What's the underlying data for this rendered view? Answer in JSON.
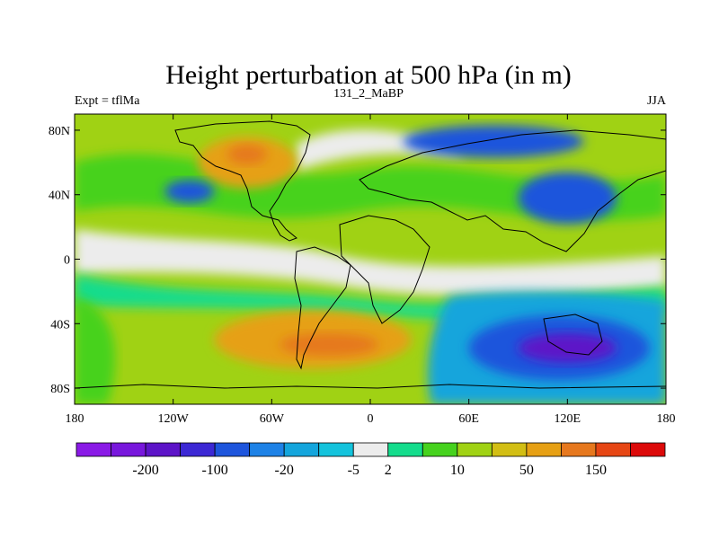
{
  "figure": {
    "title": "Height perturbation at 500 hPa (in m)",
    "left_label": "Expt = tflMa",
    "center_label": "131_2_MaBP",
    "right_label": "JJA"
  },
  "map": {
    "projection": "cylindrical equidistant",
    "lon_range": [
      -180,
      180
    ],
    "lat_range": [
      -90,
      90
    ]
  },
  "axes": {
    "lat_ticks": [
      {
        "value": 80,
        "label": "80N"
      },
      {
        "value": 40,
        "label": "40N"
      },
      {
        "value": 0,
        "label": "0"
      },
      {
        "value": -40,
        "label": "40S"
      },
      {
        "value": -80,
        "label": "80S"
      }
    ],
    "lon_ticks": [
      {
        "value": -180,
        "label": "180"
      },
      {
        "value": -120,
        "label": "120W"
      },
      {
        "value": -60,
        "label": "60W"
      },
      {
        "value": 0,
        "label": "0"
      },
      {
        "value": 60,
        "label": "60E"
      },
      {
        "value": 120,
        "label": "120E"
      },
      {
        "value": 180,
        "label": "180"
      }
    ]
  },
  "colorbar": {
    "colors": [
      "#8a1ae6",
      "#7817dc",
      "#5d14c8",
      "#3c28d4",
      "#1e55dc",
      "#1e82e6",
      "#14a5dc",
      "#14c3dc",
      "#ececec",
      "#14dc8c",
      "#46d21e",
      "#a0d214",
      "#d2be14",
      "#e6a014",
      "#e6781e",
      "#e64614",
      "#dc0a0a"
    ],
    "labels": [
      {
        "after_index": 1,
        "text": "-200"
      },
      {
        "after_index": 3,
        "text": "-100"
      },
      {
        "after_index": 5,
        "text": "-20"
      },
      {
        "after_index": 7,
        "text": "-5"
      },
      {
        "after_index": 8,
        "text": "2"
      },
      {
        "after_index": 10,
        "text": "10"
      },
      {
        "after_index": 12,
        "text": "50"
      },
      {
        "after_index": 14,
        "text": "150"
      }
    ]
  },
  "regions": [
    {
      "name": "nh-high-orange",
      "color": "#e6a014",
      "lon": -75,
      "lat": 60,
      "rlon": 30,
      "rlat": 16
    },
    {
      "name": "nh-high-darkorange",
      "color": "#e6781e",
      "lon": -75,
      "lat": 65,
      "rlon": 12,
      "rlat": 6
    },
    {
      "name": "nh-pacific-low",
      "color": "#1e55dc",
      "lon": -110,
      "lat": 42,
      "rlon": 15,
      "rlat": 7
    },
    {
      "name": "nh-eurasia-low",
      "color": "#1e55dc",
      "lon": 75,
      "lat": 73,
      "rlon": 55,
      "rlat": 10
    },
    {
      "name": "nh-asia-low",
      "color": "#1e55dc",
      "lon": 120,
      "lat": 38,
      "rlon": 30,
      "rlat": 16
    },
    {
      "name": "sh-high-orange",
      "color": "#e6a014",
      "lon": -35,
      "lat": -50,
      "rlon": 60,
      "rlat": 18
    },
    {
      "name": "sh-high-darkorange",
      "color": "#e6781e",
      "lon": -25,
      "lat": -53,
      "rlon": 30,
      "rlat": 7
    },
    {
      "name": "sh-low-blue",
      "color": "#1e55dc",
      "lon": 115,
      "lat": -55,
      "rlon": 55,
      "rlat": 20
    },
    {
      "name": "sh-low-violet",
      "color": "#5d14c8",
      "lon": 120,
      "lat": -55,
      "rlon": 30,
      "rlat": 9
    }
  ]
}
